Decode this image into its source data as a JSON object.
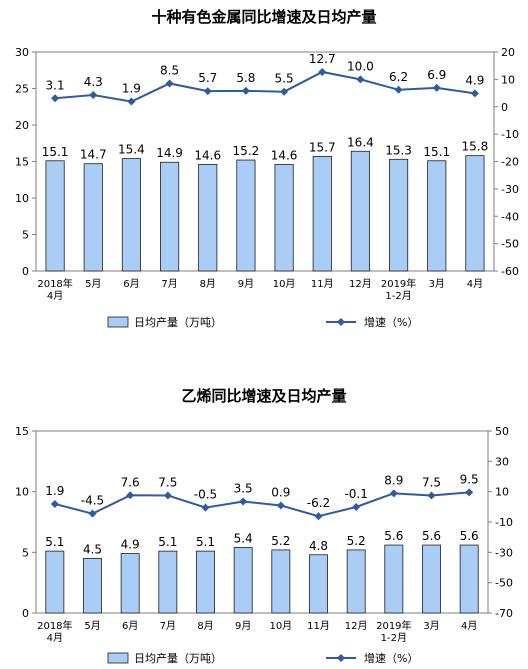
{
  "chart_data": [
    {
      "type": "bar",
      "title": "十种有色金属同比增速及日均产量",
      "categories": [
        "2018年\n4月",
        "5月",
        "6月",
        "7月",
        "8月",
        "9月",
        "10月",
        "11月",
        "12月",
        "2019年\n1-2月",
        "3月",
        "4月"
      ],
      "series": [
        {
          "name": "日均产量（万吨）",
          "type": "bar",
          "axis": "left",
          "values": [
            15.1,
            14.7,
            15.4,
            14.9,
            14.6,
            15.2,
            14.6,
            15.7,
            16.4,
            15.3,
            15.1,
            15.8
          ]
        },
        {
          "name": "增速（%）",
          "type": "line",
          "axis": "right",
          "values": [
            3.1,
            4.3,
            1.9,
            8.5,
            5.7,
            5.8,
            5.5,
            12.7,
            10.0,
            6.2,
            6.9,
            4.9
          ],
          "labels": [
            "3.1",
            "4.3",
            "1.9",
            "8.5",
            "5.7",
            "5.8",
            "5.5",
            "12.7",
            "10.0",
            "6.2",
            "6.9",
            "4.9"
          ]
        }
      ],
      "left_axis": {
        "min": 0,
        "max": 30,
        "ticks": [
          0,
          5,
          10,
          15,
          20,
          25,
          30
        ]
      },
      "right_axis": {
        "min": -60,
        "max": 20,
        "ticks": [
          -60,
          -50,
          -40,
          -30,
          -20,
          -10,
          0,
          10,
          20
        ]
      },
      "legend_position": "bottom",
      "colors": {
        "bar_fill": "#a9cdf5",
        "bar_stroke": "#1f1f1f",
        "line": "#2e5c9e"
      }
    },
    {
      "type": "bar",
      "title": "乙烯同比增速及日均产量",
      "categories": [
        "2018年\n4月",
        "5月",
        "6月",
        "7月",
        "8月",
        "9月",
        "10月",
        "11月",
        "12月",
        "2019年\n1-2月",
        "3月",
        "4月"
      ],
      "series": [
        {
          "name": "日均产量（万吨）",
          "type": "bar",
          "axis": "left",
          "values": [
            5.1,
            4.5,
            4.9,
            5.1,
            5.1,
            5.4,
            5.2,
            4.8,
            5.2,
            5.6,
            5.6,
            5.6
          ]
        },
        {
          "name": "增速（%）",
          "type": "line",
          "axis": "right",
          "values": [
            1.9,
            -4.5,
            7.6,
            7.5,
            -0.5,
            3.5,
            0.9,
            -6.2,
            -0.1,
            8.9,
            7.5,
            9.5
          ],
          "labels": [
            "1.9",
            "-4.5",
            "7.6",
            "7.5",
            "-0.5",
            "3.5",
            "0.9",
            "-6.2",
            "-0.1",
            "8.9",
            "7.5",
            "9.5"
          ]
        }
      ],
      "left_axis": {
        "min": 0,
        "max": 15,
        "ticks": [
          0,
          5,
          10,
          15
        ]
      },
      "right_axis": {
        "min": -70,
        "max": 50,
        "ticks": [
          -70,
          -50,
          -30,
          -10,
          10,
          30,
          50
        ]
      },
      "legend_position": "bottom",
      "colors": {
        "bar_fill": "#a9cdf5",
        "bar_stroke": "#1f1f1f",
        "line": "#2e5c9e"
      }
    }
  ]
}
